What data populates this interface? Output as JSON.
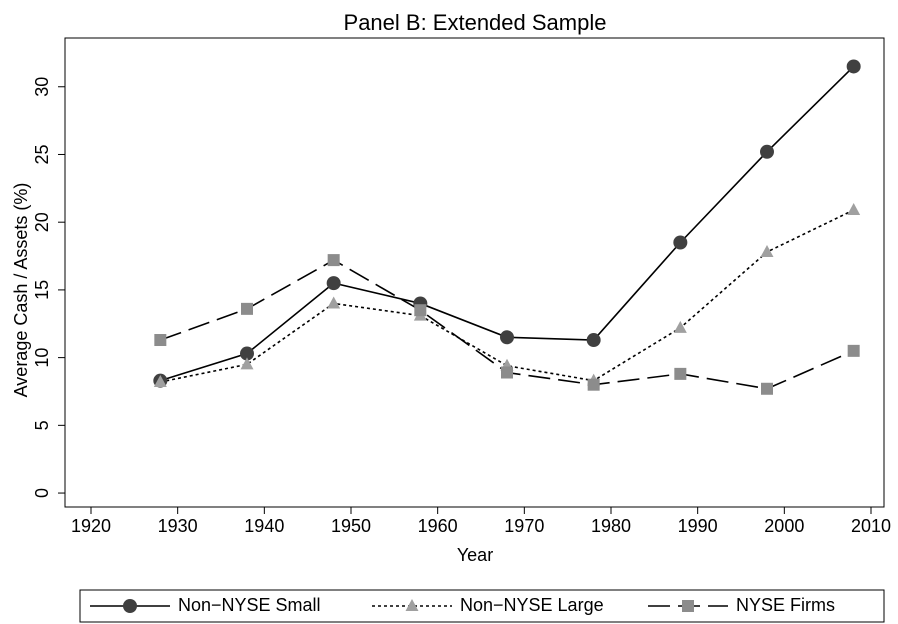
{
  "chart_data": {
    "type": "line",
    "title": "Panel B: Extended Sample",
    "xlabel": "Year",
    "ylabel": "Average Cash / Assets (%)",
    "x": [
      1928,
      1938,
      1948,
      1958,
      1968,
      1978,
      1988,
      1998,
      2008
    ],
    "series": [
      {
        "name": "Non−NYSE Small",
        "color": "#404040",
        "marker": "circle",
        "dash": "none",
        "values": [
          8.3,
          10.3,
          15.5,
          14.0,
          11.5,
          11.3,
          18.5,
          25.2,
          31.5
        ]
      },
      {
        "name": "Non−NYSE Large",
        "color": "#a0a0a0",
        "marker": "triangle",
        "dash": "3 3",
        "values": [
          8.2,
          9.5,
          14.0,
          13.1,
          9.4,
          8.3,
          12.2,
          17.8,
          20.9
        ]
      },
      {
        "name": "NYSE Firms",
        "color": "#8c8c8c",
        "marker": "square",
        "dash": "22 8",
        "values": [
          11.3,
          13.6,
          17.2,
          13.5,
          8.9,
          8.0,
          8.8,
          7.7,
          10.5
        ]
      }
    ],
    "line_color": "#000000",
    "xlim": [
      1917,
      2011.5
    ],
    "xticks": [
      1920,
      1930,
      1940,
      1950,
      1960,
      1970,
      1980,
      1990,
      2000,
      2010
    ],
    "ylim": [
      -1.03,
      33.6
    ],
    "yticks": [
      0,
      5,
      10,
      15,
      20,
      25,
      30
    ],
    "grid": false,
    "legend": "bottom"
  }
}
